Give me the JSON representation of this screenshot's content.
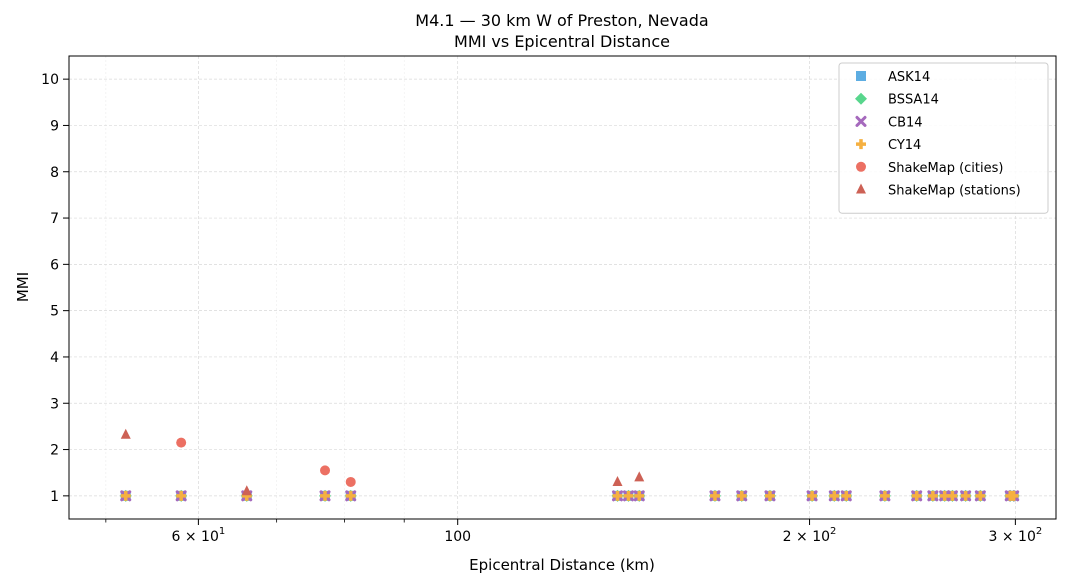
{
  "chart_data": {
    "type": "scatter",
    "title": "M4.1 — 30 km W of Preston, Nevada",
    "subtitle": "MMI vs Epicentral Distance",
    "xlabel": "Epicentral Distance (km)",
    "ylabel": "MMI",
    "xscale": "log",
    "xlim": [
      46.5,
      325
    ],
    "ylim": [
      0.5,
      10.5
    ],
    "grid": true,
    "legend_position": "top-right",
    "x_tick_labels": [
      {
        "value": 60,
        "label": "6 × 10"
      },
      {
        "value": 100,
        "label": "100"
      },
      {
        "value": 200,
        "label": "2 × 10"
      },
      {
        "value": 300,
        "label": "3 × 10"
      }
    ],
    "y_ticks": [
      "1",
      "2",
      "3",
      "4",
      "5",
      "6",
      "7",
      "8",
      "9",
      "10"
    ],
    "series": [
      {
        "name": "ASK14",
        "marker": "square",
        "color": "#5DADE2",
        "x": [
          52,
          58,
          66,
          77,
          81,
          137,
          140,
          143,
          166,
          175,
          185,
          201,
          210,
          215,
          232,
          247,
          255,
          261,
          265,
          272,
          280,
          297,
          299
        ],
        "y": [
          1,
          1,
          1,
          1,
          1,
          1,
          1,
          1,
          1,
          1,
          1,
          1,
          1,
          1,
          1,
          1,
          1,
          1,
          1,
          1,
          1,
          1,
          1
        ]
      },
      {
        "name": "BSSA14",
        "marker": "diamond",
        "color": "#58D68D",
        "x": [
          52,
          58,
          66,
          77,
          81,
          137,
          140,
          143,
          166,
          175,
          185,
          201,
          210,
          215,
          232,
          247,
          255,
          261,
          265,
          272,
          280,
          297,
          299
        ],
        "y": [
          1,
          1,
          1,
          1,
          1,
          1,
          1,
          1,
          1,
          1,
          1,
          1,
          1,
          1,
          1,
          1,
          1,
          1,
          1,
          1,
          1,
          1,
          1
        ]
      },
      {
        "name": "CB14",
        "marker": "x",
        "color": "#A569BD",
        "x": [
          52,
          58,
          66,
          77,
          81,
          137,
          140,
          143,
          166,
          175,
          185,
          201,
          210,
          215,
          232,
          247,
          255,
          261,
          265,
          272,
          280,
          297,
          299
        ],
        "y": [
          1,
          1,
          1,
          1,
          1,
          1,
          1,
          1,
          1,
          1,
          1,
          1,
          1,
          1,
          1,
          1,
          1,
          1,
          1,
          1,
          1,
          1,
          1
        ]
      },
      {
        "name": "CY14",
        "marker": "plus",
        "color": "#F5B041",
        "x": [
          52,
          58,
          66,
          77,
          81,
          137,
          140,
          143,
          166,
          175,
          185,
          201,
          210,
          215,
          232,
          247,
          255,
          261,
          265,
          272,
          280,
          297,
          299
        ],
        "y": [
          1,
          1,
          1,
          1,
          1,
          1,
          1,
          1,
          1,
          1,
          1,
          1,
          1,
          1,
          1,
          1,
          1,
          1,
          1,
          1,
          1,
          1,
          1
        ]
      },
      {
        "name": "ShakeMap (cities)",
        "marker": "circle",
        "color": "#EC7063",
        "x": [
          58,
          77,
          81
        ],
        "y": [
          2.15,
          1.55,
          1.3
        ]
      },
      {
        "name": "ShakeMap (stations)",
        "marker": "triangle",
        "color": "#CD6155",
        "x": [
          52,
          66,
          137,
          143
        ],
        "y": [
          2.32,
          1.1,
          1.3,
          1.4
        ]
      }
    ]
  }
}
